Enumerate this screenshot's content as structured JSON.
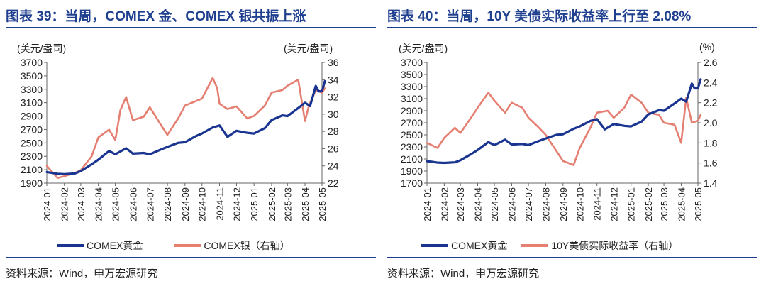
{
  "panels": [
    {
      "title": "图表 39：当周，COMEX 金、COMEX 银共振上涨",
      "left_unit": "(美元/盎司)",
      "right_unit": "(美元/盎司)",
      "source": "资料来源：Wind，申万宏源研究",
      "legend": [
        "COMEX黄金",
        "COMEX银（右轴）"
      ]
    },
    {
      "title": "图表 40：当周，10Y 美债实际收益率上行至 2.08%",
      "left_unit": "(美元/盎司)",
      "right_unit": "(%)",
      "source": "资料来源：Wind，申万宏源研究",
      "legend": [
        "COMEX黄金",
        "10Y美债实际收益率（右轴）"
      ]
    }
  ],
  "colors": {
    "gold": "#1a3591",
    "secondary": "#e47f72",
    "title": "#1f3f8f"
  },
  "chart_data": [
    {
      "type": "line",
      "title": "图表 39：当周，COMEX 金、COMEX 银共振上涨",
      "x_tick_labels": [
        "2024-01",
        "2024-02",
        "2024-03",
        "2024-04",
        "2024-05",
        "2024-06",
        "2024-07",
        "2024-08",
        "2024-09",
        "2024-10",
        "2024-11",
        "2024-12",
        "2025-01",
        "2025-02",
        "2025-03",
        "2025-04",
        "2025-05"
      ],
      "x_range": [
        "2024-01",
        "2025-05"
      ],
      "y_left_lim": [
        1900,
        3700
      ],
      "y_left_ticks": [
        1900,
        2100,
        2300,
        2500,
        2700,
        2900,
        3100,
        3300,
        3500,
        3700
      ],
      "y_right_lim": [
        22,
        36
      ],
      "y_right_ticks": [
        22,
        24,
        26,
        28,
        30,
        32,
        34,
        36
      ],
      "legend_position": "bottom",
      "series": [
        {
          "name": "COMEX黄金",
          "axis": "left",
          "x": [
            "2024-01",
            "2024-01-20",
            "2024-02",
            "2024-02-20",
            "2024-03",
            "2024-03-20",
            "2024-04",
            "2024-04-20",
            "2024-05",
            "2024-05-20",
            "2024-06",
            "2024-06-20",
            "2024-07",
            "2024-07-20",
            "2024-08",
            "2024-08-20",
            "2024-09",
            "2024-09-20",
            "2024-10",
            "2024-10-20",
            "2024-11",
            "2024-11-15",
            "2024-12",
            "2024-12-20",
            "2025-01",
            "2025-01-20",
            "2025-02",
            "2025-02-20",
            "2025-03",
            "2025-03-20",
            "2025-04",
            "2025-04-10",
            "2025-04-20",
            "2025-04-25",
            "2025-05",
            "2025-05-06"
          ],
          "values": [
            2065,
            2040,
            2035,
            2045,
            2080,
            2180,
            2250,
            2380,
            2330,
            2420,
            2340,
            2350,
            2330,
            2400,
            2440,
            2500,
            2510,
            2600,
            2640,
            2730,
            2760,
            2590,
            2680,
            2650,
            2640,
            2720,
            2840,
            2910,
            2900,
            3020,
            3100,
            3050,
            3350,
            3270,
            3270,
            3420
          ]
        },
        {
          "name": "COMEX银（右轴）",
          "axis": "right",
          "x": [
            "2024-01",
            "2024-01-20",
            "2024-02",
            "2024-02-20",
            "2024-03",
            "2024-03-20",
            "2024-04",
            "2024-04-20",
            "2024-05",
            "2024-05-10",
            "2024-05-20",
            "2024-06",
            "2024-06-20",
            "2024-07",
            "2024-07-20",
            "2024-08",
            "2024-08-20",
            "2024-09",
            "2024-09-20",
            "2024-10",
            "2024-10-20",
            "2024-10-28",
            "2024-11",
            "2024-11-15",
            "2024-12",
            "2024-12-20",
            "2025-01",
            "2025-01-20",
            "2025-02",
            "2025-02-20",
            "2025-03",
            "2025-03-20",
            "2025-04",
            "2025-04-08",
            "2025-04-20",
            "2025-05",
            "2025-05-06"
          ],
          "values": [
            24.0,
            22.6,
            22.8,
            23.2,
            23.5,
            25.1,
            27.3,
            28.2,
            27.0,
            30.5,
            32.0,
            29.3,
            29.7,
            30.8,
            28.8,
            27.6,
            29.5,
            31.0,
            31.5,
            31.8,
            34.2,
            33.0,
            31.2,
            30.6,
            30.9,
            29.5,
            29.8,
            31.0,
            32.5,
            32.8,
            33.3,
            34.0,
            29.2,
            31.0,
            32.8,
            32.5,
            33.0
          ]
        }
      ]
    },
    {
      "type": "line",
      "title": "图表 40：当周，10Y 美债实际收益率上行至 2.08%",
      "x_tick_labels": [
        "2024-01",
        "2024-02",
        "2024-03",
        "2024-04",
        "2024-05",
        "2024-06",
        "2024-07",
        "2024-08",
        "2024-09",
        "2024-10",
        "2024-11",
        "2024-12",
        "2025-01",
        "2025-02",
        "2025-03",
        "2025-04",
        "2025-05"
      ],
      "x_range": [
        "2024-01",
        "2025-05"
      ],
      "y_left_lim": [
        1700,
        3700
      ],
      "y_left_ticks": [
        1700,
        1900,
        2100,
        2300,
        2500,
        2700,
        2900,
        3100,
        3300,
        3500,
        3700
      ],
      "y_right_lim": [
        1.4,
        2.6
      ],
      "y_right_ticks": [
        1.4,
        1.6,
        1.8,
        2.0,
        2.2,
        2.4,
        2.6
      ],
      "legend_position": "bottom",
      "series": [
        {
          "name": "COMEX黄金",
          "axis": "left",
          "x": [
            "2024-01",
            "2024-01-20",
            "2024-02",
            "2024-02-20",
            "2024-03",
            "2024-03-20",
            "2024-04",
            "2024-04-20",
            "2024-05",
            "2024-05-20",
            "2024-06",
            "2024-06-20",
            "2024-07",
            "2024-07-20",
            "2024-08",
            "2024-08-20",
            "2024-09",
            "2024-09-20",
            "2024-10",
            "2024-10-20",
            "2024-11",
            "2024-11-15",
            "2024-12",
            "2024-12-20",
            "2025-01",
            "2025-01-20",
            "2025-02",
            "2025-02-20",
            "2025-03",
            "2025-03-20",
            "2025-04",
            "2025-04-10",
            "2025-04-20",
            "2025-04-25",
            "2025-05",
            "2025-05-06"
          ],
          "values": [
            2065,
            2040,
            2035,
            2045,
            2080,
            2180,
            2250,
            2380,
            2330,
            2420,
            2340,
            2350,
            2330,
            2400,
            2440,
            2500,
            2510,
            2600,
            2640,
            2730,
            2760,
            2590,
            2680,
            2650,
            2640,
            2720,
            2840,
            2910,
            2900,
            3020,
            3100,
            3050,
            3350,
            3270,
            3270,
            3420
          ]
        },
        {
          "name": "10Y美债实际收益率（右轴）",
          "axis": "right",
          "x": [
            "2024-01",
            "2024-01-20",
            "2024-02",
            "2024-02-20",
            "2024-03",
            "2024-03-20",
            "2024-04",
            "2024-04-20",
            "2024-05",
            "2024-05-20",
            "2024-06",
            "2024-06-20",
            "2024-07",
            "2024-07-20",
            "2024-08",
            "2024-08-20",
            "2024-09",
            "2024-09-20",
            "2024-10",
            "2024-10-20",
            "2024-11",
            "2024-11-20",
            "2024-12",
            "2024-12-20",
            "2025-01",
            "2025-01-20",
            "2025-02",
            "2025-02-20",
            "2025-03",
            "2025-03-20",
            "2025-04",
            "2025-04-10",
            "2025-04-20",
            "2025-05",
            "2025-05-06"
          ],
          "values": [
            1.8,
            1.75,
            1.85,
            1.95,
            1.9,
            2.05,
            2.15,
            2.3,
            2.22,
            2.1,
            2.2,
            2.15,
            2.05,
            1.95,
            1.88,
            1.72,
            1.62,
            1.58,
            1.75,
            1.95,
            2.1,
            2.12,
            2.05,
            2.15,
            2.28,
            2.2,
            2.1,
            2.08,
            2.0,
            1.98,
            1.8,
            2.25,
            2.0,
            2.02,
            2.08
          ]
        }
      ]
    }
  ]
}
